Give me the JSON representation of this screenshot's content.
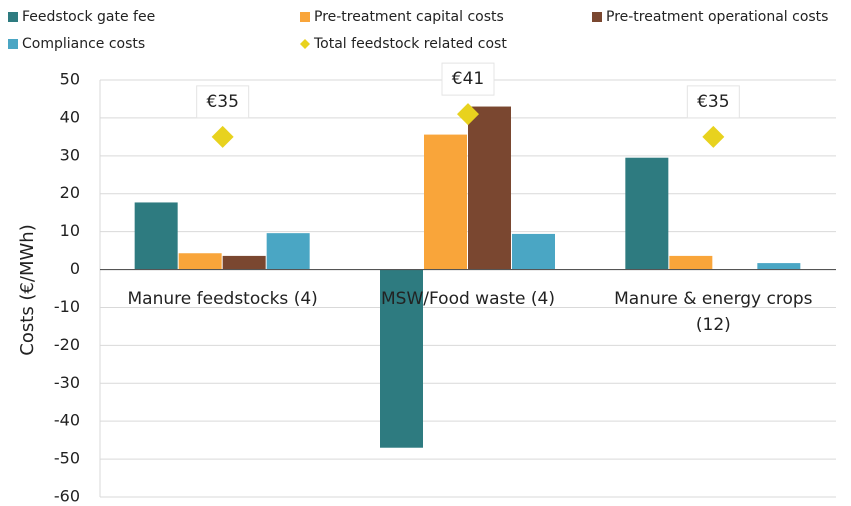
{
  "chart_data": {
    "type": "bar",
    "y_label": "Costs (€/MWh)",
    "categories": [
      "Manure feedstocks (4)",
      "MSW/Food waste (4)",
      "Manure & energy crops (12)"
    ],
    "series": [
      {
        "name": "Feedstock gate fee",
        "color": "#2e7b80",
        "values": [
          17.7,
          -47,
          29.5
        ]
      },
      {
        "name": "Pre-treatment capital costs",
        "color": "#f9a53a",
        "values": [
          4.3,
          35.6,
          3.6
        ]
      },
      {
        "name": "Pre-treatment operational costs",
        "color": "#7a4730",
        "values": [
          3.6,
          43,
          0
        ]
      },
      {
        "name": "Compliance costs",
        "color": "#4aa6c4",
        "values": [
          9.6,
          9.4,
          1.7
        ]
      },
      {
        "name": "Total feedstock related cost",
        "color": "#e8d21e",
        "type": "scatter",
        "values": [
          35,
          41,
          35
        ],
        "value_labels": [
          "€35",
          "€41",
          "€35"
        ]
      }
    ],
    "ylim": [
      -60,
      50
    ],
    "yticks": [
      -60,
      -50,
      -40,
      -30,
      -20,
      -10,
      0,
      10,
      20,
      30,
      40,
      50
    ],
    "grid": true,
    "legend": "top"
  }
}
